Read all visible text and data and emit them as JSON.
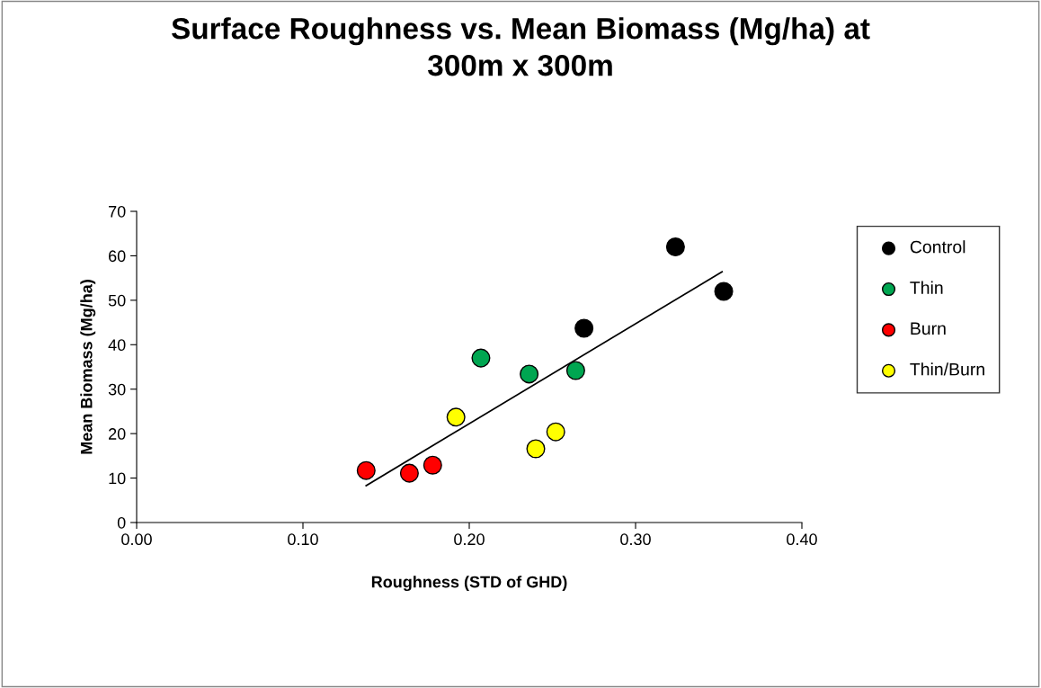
{
  "chart_data": {
    "type": "scatter",
    "title": "Surface Roughness vs. Mean Biomass (Mg/ha) at\n300m x 300m",
    "xlabel": "Roughness (STD of GHD)",
    "ylabel": "Mean Biomass (Mg/ha)",
    "xlim": [
      0,
      0.4
    ],
    "xticks": [
      {
        "value": 0,
        "label": "0.00"
      },
      {
        "value": 0.1,
        "label": "0.10"
      },
      {
        "value": 0.2,
        "label": "0.20"
      },
      {
        "value": 0.3,
        "label": "0.30"
      },
      {
        "value": 0.4,
        "label": "0.40"
      }
    ],
    "ylim": [
      0,
      70
    ],
    "yticks": [
      0,
      10,
      20,
      30,
      40,
      50,
      60,
      70
    ],
    "grid": false,
    "legend": "right",
    "marker": "circle",
    "series": [
      {
        "name": "Control",
        "color": "#000000",
        "x": [
          0.324,
          0.353,
          0.269
        ],
        "values": [
          62,
          52,
          43.7
        ]
      },
      {
        "name": "Thin",
        "color": "#00a651",
        "x": [
          0.207,
          0.236,
          0.264
        ],
        "values": [
          37,
          33.4,
          34.2
        ]
      },
      {
        "name": "Burn",
        "color": "#ff0000",
        "x": [
          0.138,
          0.164,
          0.178
        ],
        "values": [
          11.7,
          11.1,
          12.9
        ]
      },
      {
        "name": "Thin/Burn",
        "color": "#ffff00",
        "x": [
          0.192,
          0.24,
          0.252
        ],
        "values": [
          23.7,
          16.6,
          20.4
        ]
      },
      {
        "type": "line",
        "marker": "none",
        "color": "#000000",
        "x": [
          0.138,
          0.352
        ],
        "values": [
          8.3,
          56.4
        ]
      }
    ]
  }
}
